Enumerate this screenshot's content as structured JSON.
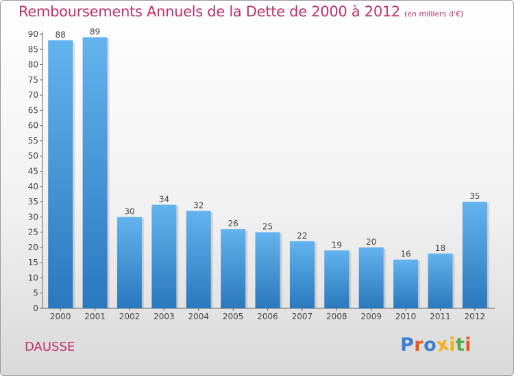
{
  "title": {
    "main": "Remboursements Annuels de la Dette de 2000 à 2012",
    "unit": "(en milliers d'€)"
  },
  "commune": "DAUSSE",
  "logo": {
    "text": "Proxiti",
    "letter_colors": [
      "#3a7fd0",
      "#e8591f",
      "#3a7fd0",
      "#f2b01e",
      "#f2b01e",
      "#53a84a",
      "#e8591f"
    ]
  },
  "colors": {
    "accent": "#c0306b",
    "bar_light": "#62b3ee",
    "bar_dark": "#2a78bd"
  },
  "chart_data": {
    "type": "bar",
    "categories": [
      "2000",
      "2001",
      "2002",
      "2003",
      "2004",
      "2005",
      "2006",
      "2007",
      "2008",
      "2009",
      "2010",
      "2011",
      "2012"
    ],
    "values": [
      88,
      89,
      30,
      34,
      32,
      26,
      25,
      22,
      19,
      20,
      16,
      18,
      35
    ],
    "title": "Remboursements Annuels de la Dette de 2000 à 2012",
    "xlabel": "",
    "ylabel": "",
    "ylim": [
      0,
      90
    ],
    "yticks": [
      0,
      5,
      10,
      15,
      20,
      25,
      30,
      35,
      40,
      45,
      50,
      55,
      60,
      65,
      70,
      75,
      80,
      85,
      90
    ],
    "grid": false,
    "legend": "none"
  }
}
